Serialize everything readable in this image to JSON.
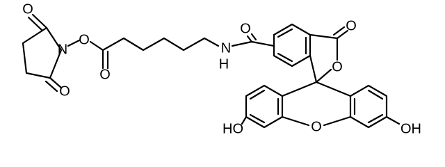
{
  "atoms": [
    {
      "label": "O"
    },
    {
      "label": "N"
    },
    {
      "label": "O"
    },
    {
      "label": "O"
    },
    {
      "label": "O"
    },
    {
      "label": "N"
    },
    {
      "label": "H"
    },
    {
      "label": "O"
    },
    {
      "label": "O"
    },
    {
      "label": "O"
    },
    {
      "label": "O"
    },
    {
      "label": "HO"
    },
    {
      "label": "OH"
    }
  ]
}
